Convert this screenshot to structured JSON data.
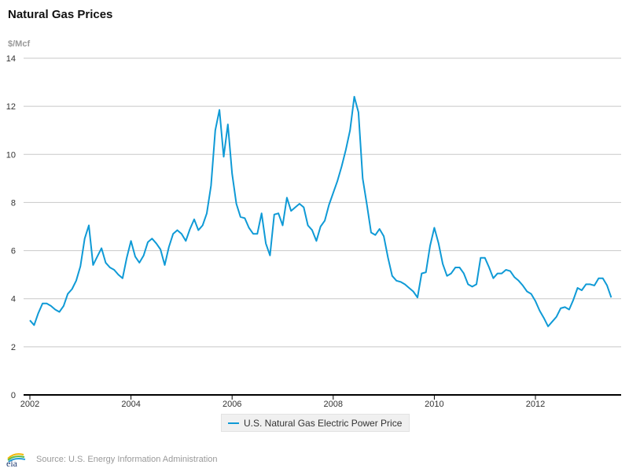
{
  "header": {
    "title": "Natural Gas Prices",
    "unit_label": "$/Mcf"
  },
  "legend": {
    "label": "U.S. Natural Gas Electric Power Price"
  },
  "footer": {
    "source": "Source: U.S. Energy Information Administration",
    "logo_text": "eia"
  },
  "colors": {
    "series": "#0f9ad6",
    "grid": "#c8c8c8",
    "axis": "#000000"
  },
  "chart_data": {
    "type": "line",
    "title": "Natural Gas Prices",
    "xlabel": "",
    "ylabel": "$/Mcf",
    "ylim": [
      0,
      14
    ],
    "yticks": [
      0,
      2,
      4,
      6,
      8,
      10,
      12,
      14
    ],
    "xticks": [
      "2002",
      "2004",
      "2006",
      "2008",
      "2010",
      "2012"
    ],
    "x_start": "2002-01",
    "x_frequency": "monthly",
    "x_range_years": [
      2002,
      2013.9
    ],
    "grid": true,
    "legend_position": "bottom-center",
    "series": [
      {
        "name": "U.S. Natural Gas Electric Power Price",
        "values": [
          3.1,
          2.9,
          3.4,
          3.8,
          3.8,
          3.7,
          3.55,
          3.45,
          3.7,
          4.2,
          4.4,
          4.75,
          5.35,
          6.5,
          7.05,
          5.4,
          5.75,
          6.1,
          5.5,
          5.3,
          5.2,
          5.0,
          4.85,
          5.7,
          6.4,
          5.75,
          5.5,
          5.8,
          6.35,
          6.5,
          6.3,
          6.05,
          5.4,
          6.15,
          6.7,
          6.85,
          6.7,
          6.4,
          6.9,
          7.3,
          6.85,
          7.05,
          7.55,
          8.7,
          11.0,
          11.85,
          9.9,
          11.25,
          9.2,
          7.95,
          7.4,
          7.35,
          6.95,
          6.7,
          6.7,
          7.55,
          6.3,
          5.8,
          7.5,
          7.55,
          7.05,
          8.2,
          7.65,
          7.8,
          7.95,
          7.8,
          7.05,
          6.85,
          6.4,
          7.0,
          7.25,
          7.9,
          8.4,
          8.9,
          9.5,
          10.2,
          11.0,
          12.4,
          11.75,
          9.0,
          7.9,
          6.75,
          6.65,
          6.9,
          6.6,
          5.7,
          4.95,
          4.75,
          4.7,
          4.6,
          4.45,
          4.3,
          4.05,
          5.05,
          5.1,
          6.2,
          6.95,
          6.3,
          5.45,
          4.95,
          5.05,
          5.3,
          5.3,
          5.05,
          4.6,
          4.5,
          4.6,
          5.7,
          5.7,
          5.3,
          4.85,
          5.05,
          5.05,
          5.2,
          5.15,
          4.9,
          4.75,
          4.55,
          4.3,
          4.2,
          3.9,
          3.5,
          3.2,
          2.85,
          3.05,
          3.25,
          3.6,
          3.65,
          3.55,
          3.95,
          4.45,
          4.35,
          4.6,
          4.6,
          4.55,
          4.85,
          4.85,
          4.55,
          4.05
        ]
      }
    ]
  }
}
